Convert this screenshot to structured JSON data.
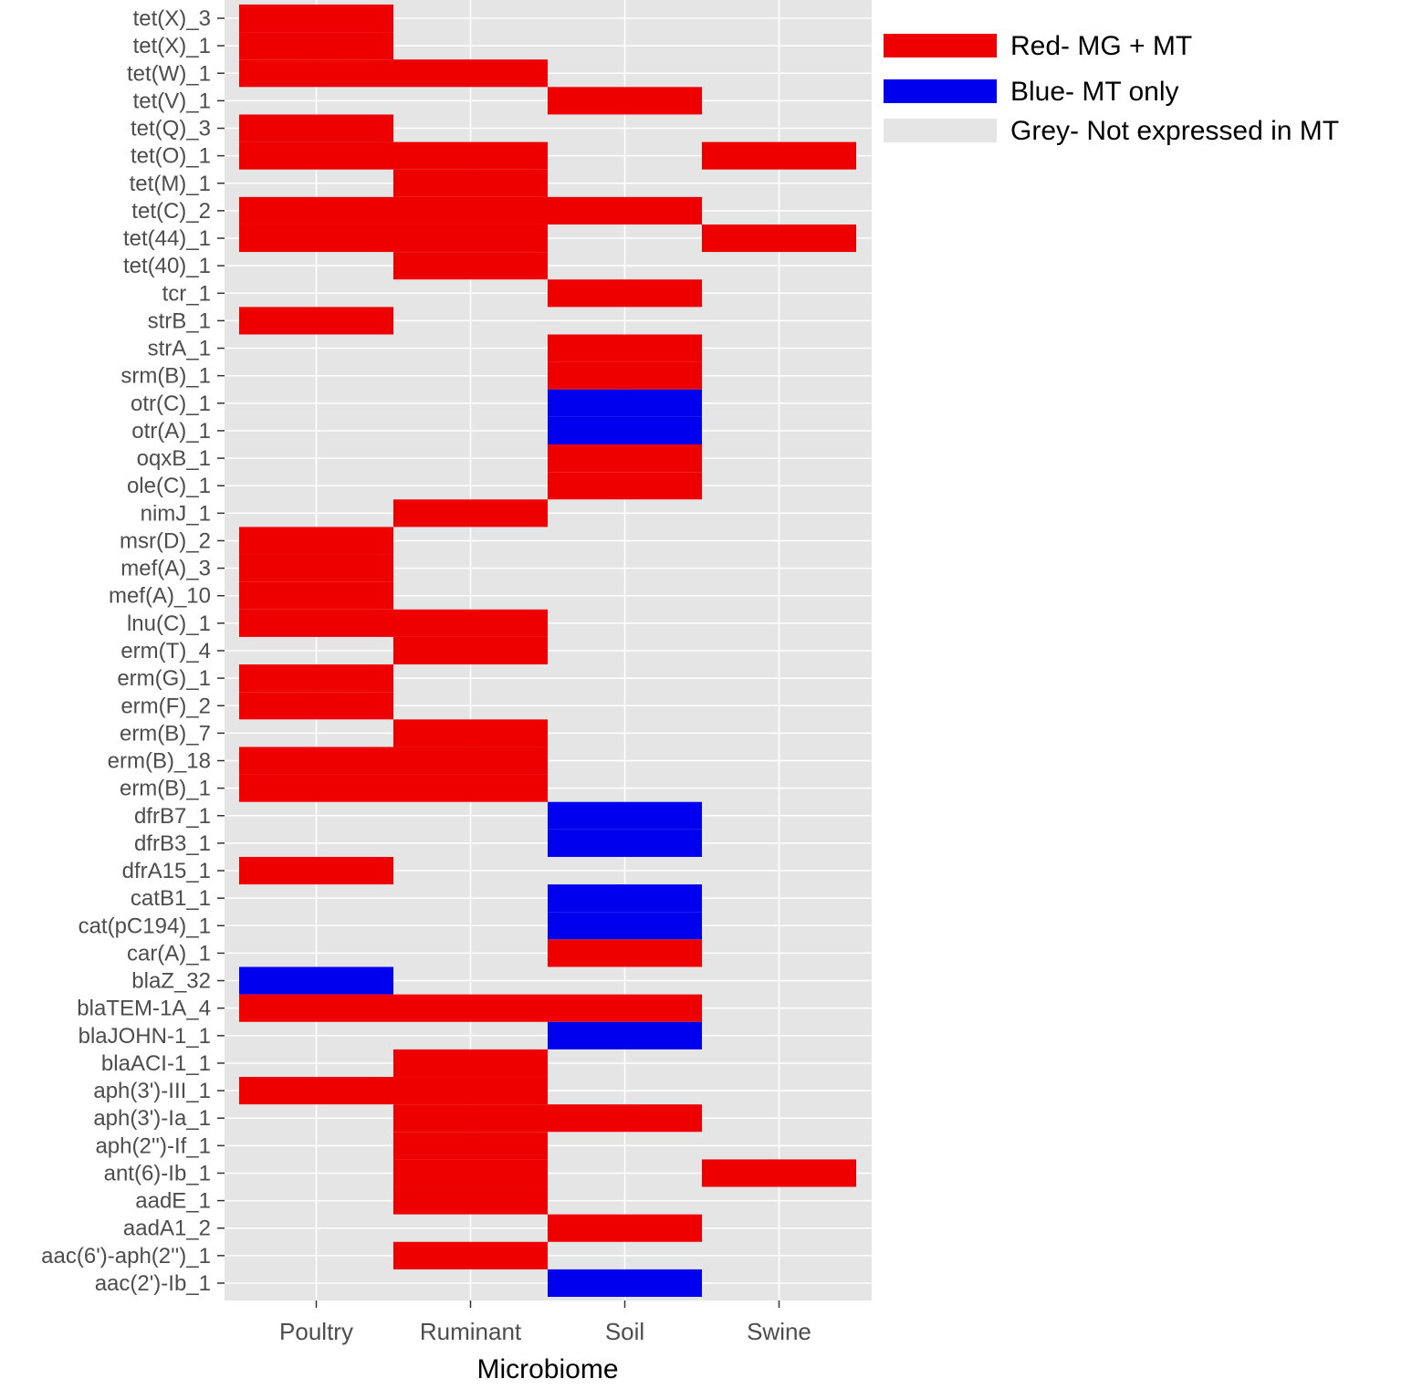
{
  "chart_data": {
    "type": "heatmap",
    "xlabel": "Microbiome",
    "ylabel": "",
    "x_categories": [
      "Poultry",
      "Ruminant",
      "Soil",
      "Swine"
    ],
    "y_categories": [
      "tet(X)_3",
      "tet(X)_1",
      "tet(W)_1",
      "tet(V)_1",
      "tet(Q)_3",
      "tet(O)_1",
      "tet(M)_1",
      "tet(C)_2",
      "tet(44)_1",
      "tet(40)_1",
      "tcr_1",
      "strB_1",
      "strA_1",
      "srm(B)_1",
      "otr(C)_1",
      "otr(A)_1",
      "oqxB_1",
      "ole(C)_1",
      "nimJ_1",
      "msr(D)_2",
      "mef(A)_3",
      "mef(A)_10",
      "lnu(C)_1",
      "erm(T)_4",
      "erm(G)_1",
      "erm(F)_2",
      "erm(B)_7",
      "erm(B)_18",
      "erm(B)_1",
      "dfrB7_1",
      "dfrB3_1",
      "dfrA15_1",
      "catB1_1",
      "cat(pC194)_1",
      "car(A)_1",
      "blaZ_32",
      "blaTEM-1A_4",
      "blaJOHN-1_1",
      "blaACI-1_1",
      "aph(3')-III_1",
      "aph(3')-Ia_1",
      "aph(2'')-If_1",
      "ant(6)-Ib_1",
      "aadE_1",
      "aadA1_2",
      "aac(6')-aph(2'')_1",
      "aac(2')-Ib_1"
    ],
    "value_codes": {
      "R": "MG + MT",
      "B": "MT only",
      "G": "Not expressed in MT"
    },
    "values": [
      [
        "R",
        "G",
        "G",
        "G"
      ],
      [
        "R",
        "G",
        "G",
        "G"
      ],
      [
        "R",
        "R",
        "G",
        "G"
      ],
      [
        "G",
        "G",
        "R",
        "G"
      ],
      [
        "R",
        "G",
        "G",
        "G"
      ],
      [
        "R",
        "R",
        "G",
        "R"
      ],
      [
        "G",
        "R",
        "G",
        "G"
      ],
      [
        "R",
        "R",
        "R",
        "G"
      ],
      [
        "R",
        "R",
        "G",
        "R"
      ],
      [
        "G",
        "R",
        "G",
        "G"
      ],
      [
        "G",
        "G",
        "R",
        "G"
      ],
      [
        "R",
        "G",
        "G",
        "G"
      ],
      [
        "G",
        "G",
        "R",
        "G"
      ],
      [
        "G",
        "G",
        "R",
        "G"
      ],
      [
        "G",
        "G",
        "B",
        "G"
      ],
      [
        "G",
        "G",
        "B",
        "G"
      ],
      [
        "G",
        "G",
        "R",
        "G"
      ],
      [
        "G",
        "G",
        "R",
        "G"
      ],
      [
        "G",
        "R",
        "G",
        "G"
      ],
      [
        "R",
        "G",
        "G",
        "G"
      ],
      [
        "R",
        "G",
        "G",
        "G"
      ],
      [
        "R",
        "G",
        "G",
        "G"
      ],
      [
        "R",
        "R",
        "G",
        "G"
      ],
      [
        "G",
        "R",
        "G",
        "G"
      ],
      [
        "R",
        "G",
        "G",
        "G"
      ],
      [
        "R",
        "G",
        "G",
        "G"
      ],
      [
        "G",
        "R",
        "G",
        "G"
      ],
      [
        "R",
        "R",
        "G",
        "G"
      ],
      [
        "R",
        "R",
        "G",
        "G"
      ],
      [
        "G",
        "G",
        "B",
        "G"
      ],
      [
        "G",
        "G",
        "B",
        "G"
      ],
      [
        "R",
        "G",
        "G",
        "G"
      ],
      [
        "G",
        "G",
        "B",
        "G"
      ],
      [
        "G",
        "G",
        "B",
        "G"
      ],
      [
        "G",
        "G",
        "R",
        "G"
      ],
      [
        "B",
        "G",
        "G",
        "G"
      ],
      [
        "R",
        "R",
        "R",
        "G"
      ],
      [
        "G",
        "G",
        "B",
        "G"
      ],
      [
        "G",
        "R",
        "G",
        "G"
      ],
      [
        "R",
        "R",
        "G",
        "G"
      ],
      [
        "G",
        "R",
        "R",
        "G"
      ],
      [
        "G",
        "R",
        "G",
        "G"
      ],
      [
        "G",
        "R",
        "G",
        "R"
      ],
      [
        "G",
        "R",
        "G",
        "G"
      ],
      [
        "G",
        "G",
        "R",
        "G"
      ],
      [
        "G",
        "R",
        "G",
        "G"
      ],
      [
        "G",
        "G",
        "B",
        "G"
      ]
    ],
    "legend": [
      {
        "code": "R",
        "label": "Red- MG + MT",
        "color": "#ee0000"
      },
      {
        "code": "B",
        "label": "Blue- MT only",
        "color": "#0000ee"
      },
      {
        "code": "G",
        "label": "Grey- Not expressed in MT",
        "color": "#e5e5e5"
      }
    ],
    "legend_position": "top-right",
    "panel_background": "#e5e5e5",
    "grid": true
  }
}
